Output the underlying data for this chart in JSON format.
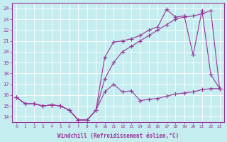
{
  "xlabel": "Windchill (Refroidissement éolien,°C)",
  "background_color": "#c5edf0",
  "grid_color": "#ffffff",
  "line_color": "#993399",
  "xlim": [
    -0.5,
    23.5
  ],
  "ylim": [
    13.5,
    24.5
  ],
  "yticks": [
    14,
    15,
    16,
    17,
    18,
    19,
    20,
    21,
    22,
    23,
    24
  ],
  "xticks": [
    0,
    1,
    2,
    3,
    4,
    5,
    6,
    7,
    8,
    9,
    10,
    11,
    12,
    13,
    14,
    15,
    16,
    17,
    18,
    19,
    20,
    21,
    22,
    23
  ],
  "line1_x": [
    0,
    1,
    2,
    3,
    4,
    5,
    6,
    7,
    8,
    9,
    10,
    11,
    12,
    13,
    14,
    15,
    16,
    17,
    18,
    19,
    20,
    21,
    22,
    23
  ],
  "line1_y": [
    15.8,
    15.2,
    15.2,
    15.0,
    15.1,
    15.0,
    14.6,
    13.7,
    13.7,
    14.6,
    16.3,
    17.0,
    16.3,
    16.4,
    15.5,
    15.6,
    15.7,
    15.9,
    16.1,
    16.2,
    16.3,
    16.5,
    16.6,
    16.6
  ],
  "line2_x": [
    0,
    1,
    2,
    3,
    4,
    5,
    6,
    7,
    8,
    9,
    10,
    11,
    12,
    13,
    14,
    15,
    16,
    17,
    18,
    19,
    20,
    21,
    22,
    23
  ],
  "line2_y": [
    15.8,
    15.2,
    15.2,
    15.0,
    15.1,
    15.0,
    14.6,
    13.7,
    13.7,
    14.6,
    17.5,
    19.0,
    20.0,
    20.5,
    21.0,
    21.5,
    22.0,
    22.5,
    23.0,
    23.2,
    23.3,
    23.5,
    23.8,
    16.6
  ],
  "line3_x": [
    0,
    1,
    2,
    3,
    4,
    5,
    6,
    7,
    8,
    9,
    10,
    11,
    12,
    13,
    14,
    15,
    16,
    17,
    18,
    19,
    20,
    21,
    22,
    23
  ],
  "line3_y": [
    15.8,
    15.2,
    15.2,
    15.0,
    15.1,
    15.0,
    14.6,
    13.7,
    13.7,
    14.6,
    19.5,
    20.9,
    21.0,
    21.2,
    21.5,
    22.0,
    22.3,
    23.9,
    23.2,
    23.3,
    19.7,
    23.8,
    17.9,
    16.6
  ]
}
